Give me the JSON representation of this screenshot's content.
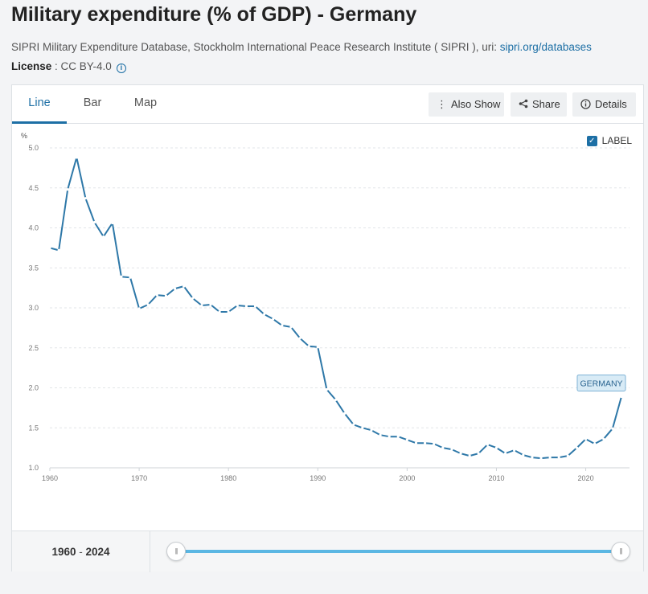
{
  "header": {
    "title": "Military expenditure (% of GDP) - Germany",
    "source_text": "SIPRI Military Expenditure Database, Stockholm International Peace Research Institute ( SIPRI ), uri: ",
    "source_link": "sipri.org/databases",
    "license_label": "License",
    "license_value": " : CC BY-4.0"
  },
  "tabs": [
    {
      "label": "Line",
      "active": true
    },
    {
      "label": "Bar",
      "active": false
    },
    {
      "label": "Map",
      "active": false
    }
  ],
  "toolbar": {
    "also_show": "Also Show",
    "share": "Share",
    "details": "Details"
  },
  "label_toggle": {
    "text": "LABEL",
    "checked": true
  },
  "range": {
    "start": "1960",
    "separator": " - ",
    "end": "2024"
  },
  "colors": {
    "line": "#2e78a8",
    "accent": "#1d6fa5",
    "slider": "#5bb7e3"
  },
  "chart_data": {
    "type": "line",
    "title": "Military expenditure (% of GDP) - Germany",
    "ylabel": "%",
    "xlabel": "",
    "ylim": [
      1.0,
      5.0
    ],
    "yticks": [
      1.0,
      1.5,
      2.0,
      2.5,
      3.0,
      3.5,
      4.0,
      4.5,
      5.0
    ],
    "xlim": [
      1960,
      2024
    ],
    "xticks": [
      1960,
      1970,
      1980,
      1990,
      2000,
      2010,
      2020
    ],
    "grid": true,
    "series": [
      {
        "name": "GERMANY",
        "x": [
          1960,
          1961,
          1962,
          1963,
          1964,
          1965,
          1966,
          1967,
          1968,
          1969,
          1970,
          1971,
          1972,
          1973,
          1974,
          1975,
          1976,
          1977,
          1978,
          1979,
          1980,
          1981,
          1982,
          1983,
          1984,
          1985,
          1986,
          1987,
          1988,
          1989,
          1990,
          1991,
          1992,
          1993,
          1994,
          1995,
          1996,
          1997,
          1998,
          1999,
          2000,
          2001,
          2002,
          2003,
          2004,
          2005,
          2006,
          2007,
          2008,
          2009,
          2010,
          2011,
          2012,
          2013,
          2014,
          2015,
          2016,
          2017,
          2018,
          2019,
          2020,
          2021,
          2022,
          2023,
          2024
        ],
        "values": [
          3.75,
          3.72,
          4.48,
          4.88,
          4.37,
          4.07,
          3.89,
          4.06,
          3.39,
          3.38,
          2.99,
          3.04,
          3.16,
          3.15,
          3.24,
          3.27,
          3.12,
          3.03,
          3.04,
          2.95,
          2.95,
          3.03,
          3.02,
          3.02,
          2.92,
          2.86,
          2.78,
          2.76,
          2.62,
          2.52,
          2.51,
          1.98,
          1.85,
          1.68,
          1.54,
          1.5,
          1.47,
          1.41,
          1.39,
          1.39,
          1.35,
          1.31,
          1.31,
          1.3,
          1.25,
          1.23,
          1.18,
          1.15,
          1.18,
          1.29,
          1.25,
          1.18,
          1.22,
          1.16,
          1.13,
          1.12,
          1.13,
          1.13,
          1.15,
          1.25,
          1.36,
          1.3,
          1.36,
          1.49,
          1.89
        ]
      }
    ],
    "end_label": "GERMANY"
  }
}
